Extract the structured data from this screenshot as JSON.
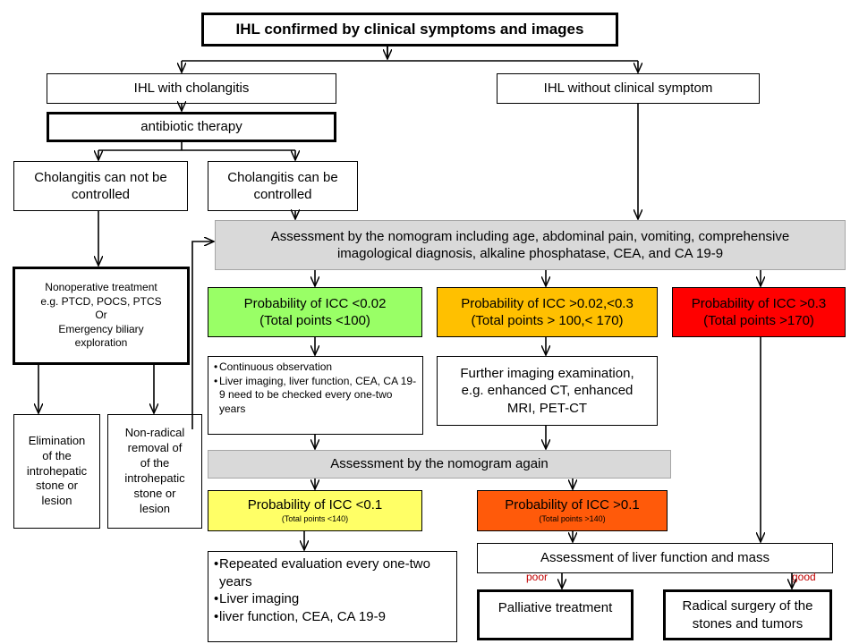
{
  "nodes": {
    "root": "IHL confirmed by clinical symptoms and images",
    "ihl_cholangitis": "IHL with cholangitis",
    "ihl_no_symptom": "IHL without clinical symptom",
    "antibiotic": "antibiotic therapy",
    "not_controlled_1": "Cholangitis can not be",
    "not_controlled_2": "controlled",
    "controlled_1": "Cholangitis can be",
    "controlled_2": "controlled",
    "assessment_1": "Assessment by the nomogram including age, abdominal pain, vomiting, comprehensive",
    "assessment_2": "imagological diagnosis, alkaline phosphatase, CEA, and CA 19-9",
    "nonop_1": "Nonoperative treatment",
    "nonop_2": "e.g. PTCD, POCS, PTCS",
    "nonop_3": "Or",
    "nonop_4": "Emergency biliary",
    "nonop_5": "exploration",
    "elim_1": "Elimination",
    "elim_2": "of the",
    "elim_3": "introhepatic",
    "elim_4": "stone or",
    "elim_5": "lesion",
    "nonrad_1": "Non-radical",
    "nonrad_2": "removal of",
    "nonrad_3": "of the",
    "nonrad_4": "introhepatic",
    "nonrad_5": "stone or",
    "nonrad_6": "lesion",
    "prob_low_1": "Probability of ICC <0.02",
    "prob_low_2": "(Total points <100)",
    "prob_mid_1": "Probability of ICC >0.02,<0.3",
    "prob_mid_2": "(Total points > 100,< 170)",
    "prob_high_1": "Probability of ICC >0.3",
    "prob_high_2": "(Total points >170)",
    "observe_items": [
      "Continuous observation",
      "Liver imaging, liver function, CEA, CA 19-9 need to be checked every one-two years"
    ],
    "further_1": "Further imaging examination,",
    "further_2": "e.g. enhanced CT, enhanced",
    "further_3": "MRI, PET-CT",
    "assessment_again": "Assessment by the nomogram again",
    "prob_01_low_1": "Probability of ICC <0.1",
    "prob_01_low_2": "(Total points <140)",
    "prob_01_high_1": "Probability of ICC  >0.1",
    "prob_01_high_2": "(Total points  >140)",
    "repeat_items": [
      "Repeated evaluation every one-two years",
      "Liver imaging",
      "liver function, CEA, CA 19-9"
    ],
    "liver_assess": "Assessment of liver function and mass",
    "poor": "poor",
    "good": "good",
    "palliative": "Palliative treatment",
    "radical_1": "Radical surgery of the",
    "radical_2": "stones and tumors"
  },
  "colors": {
    "green": "#99ff66",
    "orange": "#ffc000",
    "red": "#ff0000",
    "yellow": "#ffff66",
    "deep_orange": "#ff5a0a",
    "grey": "#d9d9d9",
    "label_red": "#c00000"
  }
}
